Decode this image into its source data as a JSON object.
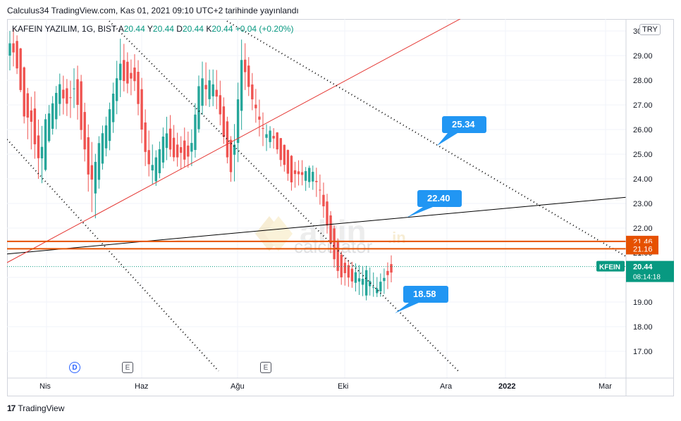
{
  "header": {
    "text": "Calculus34 TradingView.com, Kas 01, 2021 09:10 UTC+2 tarihinde yayınlandı"
  },
  "legend": {
    "symbol": "KAFEIN YAZILIM, 1G, BIST",
    "a_label": "A",
    "a_value": "20.44",
    "y_label": "Y",
    "y_value": "20.44",
    "d_label": "D",
    "d_value": "20.44",
    "k_label": "K",
    "k_value": "20.44",
    "change": "+0.04 (+0.20%)"
  },
  "currency": "TRY",
  "watermark": {
    "line1": "altin",
    "line2": ".in",
    "line3": "calculator"
  },
  "footer": {
    "brand": "TradingView"
  },
  "events": [
    {
      "type": "dividend",
      "label": "D"
    },
    {
      "type": "earnings",
      "label": "E"
    },
    {
      "type": "earnings",
      "label": "E"
    }
  ],
  "colors": {
    "up": "#26a69a",
    "down": "#ef5350",
    "red_line": "#e53935",
    "orange": "#e65100",
    "callout": "#2196f3",
    "ticker": "#089981"
  },
  "chart_data": {
    "type": "candlestick",
    "symbol": "KFEIN",
    "interval": "1G",
    "ylim": [
      16.2,
      30.2
    ],
    "y_ticks": [
      "17.00",
      "18.00",
      "19.00",
      "20.00",
      "21.00",
      "22.00",
      "23.00",
      "24.00",
      "25.00",
      "26.00",
      "27.00",
      "28.00",
      "29.00",
      "30"
    ],
    "x_ticks": [
      "Nis",
      "Haz",
      "Ağu",
      "Eki",
      "Ara",
      "2022",
      "Mar"
    ],
    "last_price": "20.44",
    "countdown": "08:14:18",
    "price_labels": [
      {
        "label": "21.46",
        "value": 21.46
      },
      {
        "label": "21.16",
        "value": 21.16
      }
    ],
    "callouts": [
      "25.34",
      "22.40",
      "18.58"
    ],
    "candles_summary": [
      [
        29.0,
        30.0,
        28.6,
        29.5
      ],
      [
        29.5,
        30.1,
        28.8,
        29.1
      ],
      [
        29.1,
        29.4,
        27.8,
        28.0
      ],
      [
        28.0,
        28.2,
        26.0,
        26.5
      ],
      [
        26.5,
        27.2,
        25.5,
        26.8
      ],
      [
        26.8,
        27.5,
        25.0,
        25.4
      ],
      [
        25.4,
        25.8,
        23.8,
        24.5
      ],
      [
        24.5,
        26.5,
        24.2,
        26.2
      ],
      [
        26.2,
        27.0,
        25.8,
        26.5
      ],
      [
        26.5,
        27.5,
        26.0,
        27.2
      ],
      [
        27.2,
        28.2,
        26.8,
        27.8
      ],
      [
        27.8,
        28.0,
        26.8,
        27.0
      ],
      [
        27.0,
        27.8,
        26.5,
        27.4
      ],
      [
        27.4,
        28.5,
        27.0,
        28.0
      ],
      [
        28.0,
        28.4,
        26.0,
        26.4
      ],
      [
        26.4,
        26.8,
        24.8,
        25.2
      ],
      [
        25.2,
        25.6,
        23.0,
        23.6
      ],
      [
        23.6,
        24.8,
        22.4,
        24.5
      ],
      [
        24.5,
        25.8,
        24.0,
        25.5
      ],
      [
        25.5,
        26.2,
        25.0,
        25.8
      ],
      [
        25.8,
        27.0,
        25.4,
        26.8
      ],
      [
        26.8,
        28.2,
        26.5,
        27.8
      ],
      [
        27.8,
        29.5,
        27.4,
        28.8
      ],
      [
        28.8,
        29.2,
        27.6,
        27.9
      ],
      [
        27.9,
        28.6,
        27.5,
        28.3
      ],
      [
        28.3,
        28.9,
        27.8,
        28.1
      ],
      [
        28.1,
        28.4,
        26.0,
        26.4
      ],
      [
        26.4,
        26.6,
        24.6,
        25.0
      ],
      [
        25.0,
        25.4,
        23.9,
        24.2
      ],
      [
        24.2,
        24.9,
        23.8,
        24.6
      ],
      [
        24.6,
        25.4,
        24.3,
        25.1
      ],
      [
        25.1,
        26.3,
        24.9,
        26.0
      ],
      [
        26.0,
        26.4,
        25.0,
        25.2
      ],
      [
        25.2,
        25.8,
        24.6,
        24.9
      ],
      [
        24.9,
        25.5,
        24.5,
        25.3
      ],
      [
        25.3,
        26.0,
        24.7,
        24.9
      ],
      [
        24.9,
        25.5,
        24.6,
        25.2
      ],
      [
        25.2,
        27.0,
        25.0,
        26.7
      ],
      [
        26.7,
        28.6,
        26.4,
        28.2
      ],
      [
        28.2,
        28.6,
        27.1,
        27.4
      ],
      [
        27.4,
        28.2,
        27.1,
        27.9
      ],
      [
        27.9,
        28.4,
        27.2,
        27.4
      ],
      [
        27.4,
        27.8,
        26.2,
        26.5
      ],
      [
        26.5,
        26.8,
        25.0,
        25.3
      ],
      [
        25.3,
        25.6,
        24.0,
        24.4
      ],
      [
        24.4,
        26.3,
        24.1,
        26.0
      ],
      [
        26.0,
        29.6,
        25.8,
        29.1
      ],
      [
        29.1,
        29.4,
        28.0,
        28.3
      ],
      [
        28.3,
        28.5,
        27.0,
        27.3
      ],
      [
        27.3,
        27.6,
        26.4,
        26.7
      ],
      [
        26.7,
        27.0,
        25.7,
        26.0
      ],
      [
        26.0,
        26.2,
        25.3,
        25.6
      ],
      [
        25.6,
        26.1,
        25.4,
        25.9
      ],
      [
        25.9,
        26.0,
        25.2,
        25.4
      ],
      [
        25.4,
        25.6,
        24.6,
        24.9
      ],
      [
        24.9,
        25.1,
        24.4,
        24.7
      ],
      [
        24.7,
        24.9,
        23.7,
        24.0
      ],
      [
        24.0,
        24.6,
        23.8,
        24.4
      ],
      [
        24.4,
        24.8,
        23.8,
        24.1
      ],
      [
        24.1,
        24.4,
        23.6,
        24.2
      ],
      [
        24.2,
        24.5,
        23.9,
        24.3
      ],
      [
        24.3,
        24.4,
        23.5,
        23.7
      ],
      [
        23.7,
        24.0,
        23.0,
        23.3
      ],
      [
        23.3,
        23.5,
        22.0,
        22.3
      ],
      [
        22.3,
        22.5,
        21.0,
        21.4
      ],
      [
        21.4,
        21.6,
        20.3,
        20.6
      ],
      [
        20.6,
        20.9,
        19.9,
        20.2
      ],
      [
        20.2,
        20.6,
        19.8,
        20.4
      ],
      [
        20.4,
        20.5,
        19.6,
        19.8
      ],
      [
        19.8,
        20.4,
        19.5,
        20.2
      ],
      [
        20.2,
        20.3,
        19.4,
        19.6
      ],
      [
        19.6,
        20.3,
        19.5,
        20.1
      ],
      [
        20.1,
        20.2,
        19.4,
        19.5
      ],
      [
        19.5,
        19.8,
        19.2,
        19.4
      ],
      [
        19.4,
        20.0,
        19.3,
        19.9
      ],
      [
        19.9,
        20.3,
        19.6,
        20.2
      ],
      [
        20.2,
        20.7,
        20.0,
        20.4
      ]
    ]
  }
}
